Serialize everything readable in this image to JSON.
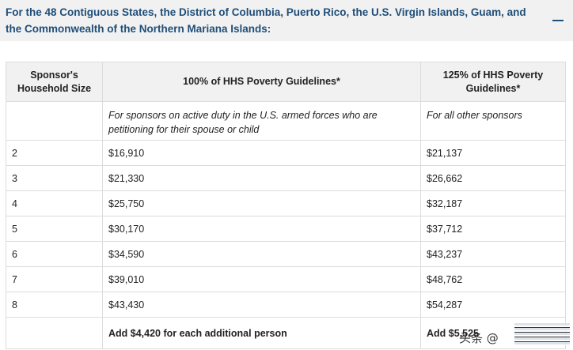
{
  "accordion": {
    "title": "For the 48 Contiguous States, the District of Columbia, Puerto Rico, the U.S. Virgin Islands, Guam, and the Commonwealth of the Northern Mariana Islands:",
    "toggle_icon": "minus-icon"
  },
  "table": {
    "headers": [
      "Sponsor's Household Size",
      "100% of HHS Poverty Guidelines*",
      "125% of HHS Poverty Guidelines*"
    ],
    "subheader": [
      "",
      "For sponsors on active duty in the U.S. armed forces who are petitioning for their spouse or child",
      "For all other sponsors"
    ],
    "rows": [
      [
        "2",
        "$16,910",
        "$21,137"
      ],
      [
        "3",
        "$21,330",
        "$26,662"
      ],
      [
        "4",
        "$25,750",
        "$32,187"
      ],
      [
        "5",
        "$30,170",
        "$37,712"
      ],
      [
        "6",
        "$34,590",
        "$43,237"
      ],
      [
        "7",
        "$39,010",
        "$48,762"
      ],
      [
        "8",
        "$43,430",
        "$54,287"
      ]
    ],
    "footer": [
      "",
      "Add $4,420 for each additional person",
      "Add $5,525"
    ]
  },
  "watermark": {
    "text": "头条 @"
  },
  "colors": {
    "title": "#1f4e79",
    "header_bg": "#f1f1f1",
    "border": "#dcdcdc"
  }
}
